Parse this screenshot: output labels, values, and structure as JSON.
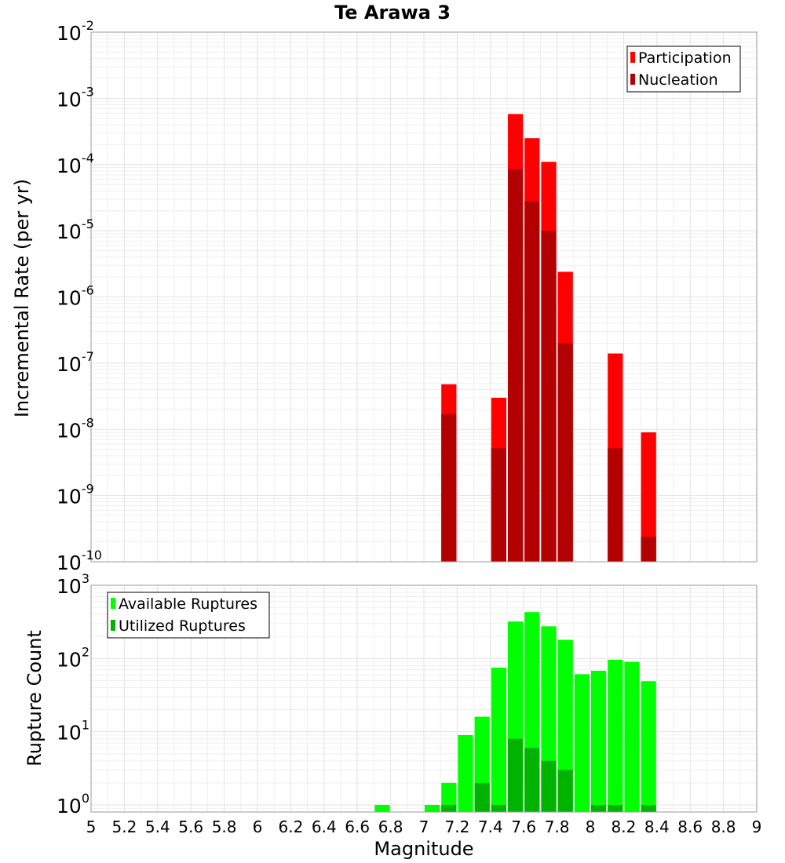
{
  "chart_data": {
    "title": "Te Arawa 3",
    "type": "bar",
    "x_axis": {
      "label": "Magnitude",
      "range": [
        5,
        9
      ],
      "tick_labels": [
        "5",
        "5.2",
        "5.4",
        "5.6",
        "5.8",
        "6",
        "6.2",
        "6.4",
        "6.6",
        "6.8",
        "7",
        "7.2",
        "7.4",
        "7.6",
        "7.8",
        "8",
        "8.2",
        "8.4",
        "8.6",
        "8.8",
        "9"
      ]
    },
    "grid": true,
    "panels": [
      {
        "name": "rates",
        "ylabel": "Incremental Rate (per yr)",
        "yscale": "log",
        "ylim": [
          1e-10,
          0.01
        ],
        "y_ticks": [
          {
            "base": "10",
            "exp": "-2",
            "value": 0.01
          },
          {
            "base": "10",
            "exp": "-3",
            "value": 0.001
          },
          {
            "base": "10",
            "exp": "-4",
            "value": 0.0001
          },
          {
            "base": "10",
            "exp": "-5",
            "value": 1e-05
          },
          {
            "base": "10",
            "exp": "-6",
            "value": 1e-06
          },
          {
            "base": "10",
            "exp": "-7",
            "value": 1e-07
          },
          {
            "base": "10",
            "exp": "-8",
            "value": 1e-08
          },
          {
            "base": "10",
            "exp": "-9",
            "value": 1e-09
          },
          {
            "base": "10",
            "exp": "-10",
            "value": 1e-10
          }
        ],
        "legend_position": "top-right",
        "series": [
          {
            "name": "Participation",
            "color": "#ff0000",
            "points": [
              {
                "x": 7.15,
                "y": 4.8e-08
              },
              {
                "x": 7.45,
                "y": 3e-08
              },
              {
                "x": 7.55,
                "y": 0.00058
              },
              {
                "x": 7.65,
                "y": 0.00025
              },
              {
                "x": 7.75,
                "y": 0.00011
              },
              {
                "x": 7.85,
                "y": 2.4e-06
              },
              {
                "x": 8.15,
                "y": 1.4e-07
              },
              {
                "x": 8.35,
                "y": 9e-09
              }
            ]
          },
          {
            "name": "Nucleation",
            "color": "#b30000",
            "points": [
              {
                "x": 7.15,
                "y": 1.7e-08
              },
              {
                "x": 7.45,
                "y": 5.2e-09
              },
              {
                "x": 7.55,
                "y": 8.5e-05
              },
              {
                "x": 7.65,
                "y": 2.8e-05
              },
              {
                "x": 7.75,
                "y": 1e-05
              },
              {
                "x": 7.85,
                "y": 2e-07
              },
              {
                "x": 8.15,
                "y": 5.2e-09
              },
              {
                "x": 8.35,
                "y": 2.4e-10
              }
            ]
          }
        ]
      },
      {
        "name": "counts",
        "ylabel": "Rupture Count",
        "yscale": "log",
        "ylim": [
          0.8,
          1000
        ],
        "y_ticks": [
          {
            "base": "10",
            "exp": "3",
            "value": 1000
          },
          {
            "base": "10",
            "exp": "2",
            "value": 100
          },
          {
            "base": "10",
            "exp": "1",
            "value": 10
          },
          {
            "base": "10",
            "exp": "0",
            "value": 1
          }
        ],
        "legend_position": "top-left",
        "series": [
          {
            "name": "Available Ruptures",
            "color": "#00ff00",
            "points": [
              {
                "x": 6.75,
                "y": 1
              },
              {
                "x": 7.05,
                "y": 1
              },
              {
                "x": 7.15,
                "y": 2
              },
              {
                "x": 7.25,
                "y": 9
              },
              {
                "x": 7.35,
                "y": 16
              },
              {
                "x": 7.45,
                "y": 75
              },
              {
                "x": 7.55,
                "y": 320
              },
              {
                "x": 7.65,
                "y": 430
              },
              {
                "x": 7.75,
                "y": 275
              },
              {
                "x": 7.85,
                "y": 180
              },
              {
                "x": 7.95,
                "y": 61
              },
              {
                "x": 8.05,
                "y": 68
              },
              {
                "x": 8.15,
                "y": 96
              },
              {
                "x": 8.25,
                "y": 90
              },
              {
                "x": 8.35,
                "y": 49
              }
            ]
          },
          {
            "name": "Utilized Ruptures",
            "color": "#00b300",
            "points": [
              {
                "x": 7.15,
                "y": 1
              },
              {
                "x": 7.35,
                "y": 2
              },
              {
                "x": 7.45,
                "y": 1
              },
              {
                "x": 7.55,
                "y": 8
              },
              {
                "x": 7.65,
                "y": 6
              },
              {
                "x": 7.75,
                "y": 4
              },
              {
                "x": 7.85,
                "y": 3
              },
              {
                "x": 8.05,
                "y": 1
              },
              {
                "x": 8.15,
                "y": 1
              },
              {
                "x": 8.35,
                "y": 1
              }
            ]
          }
        ]
      }
    ]
  }
}
